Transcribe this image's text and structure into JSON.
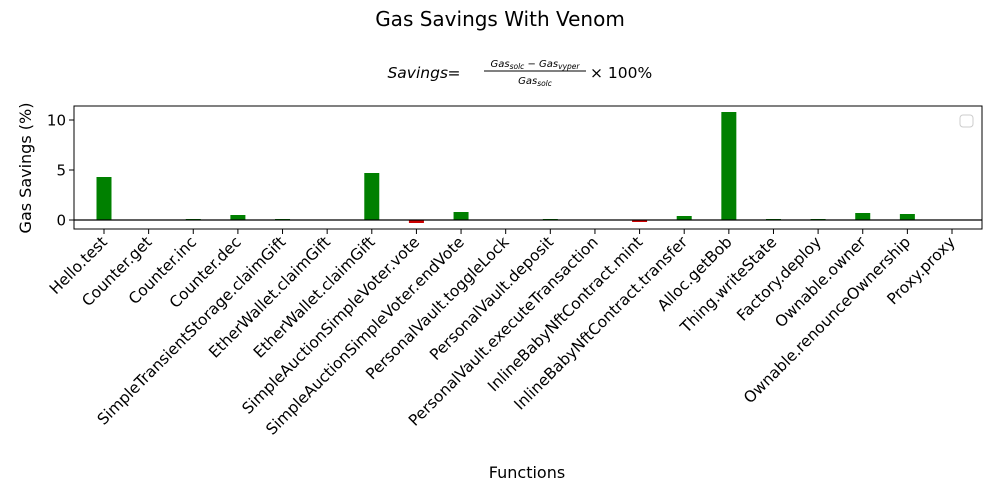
{
  "chart_data": {
    "type": "bar",
    "title": "Gas Savings With Venom",
    "formula": {
      "lhs": "Savings",
      "equals": "=",
      "numerator": "Gas",
      "numerator_sub_1": "solc",
      "minus": " − Gas",
      "numerator_sub_2": "vyper",
      "denominator": "Gas",
      "denominator_sub": "solc",
      "suffix": "× 100%"
    },
    "xlabel": "Functions",
    "ylabel": "Gas Savings (%)",
    "ylim": [
      -0.9,
      11.4
    ],
    "yticks": [
      0,
      5,
      10
    ],
    "grid": false,
    "legend": "top-right",
    "positive_color": "#008000",
    "negative_color": "#cc0000",
    "categories": [
      "Hello.test",
      "Counter.get",
      "Counter.inc",
      "Counter.dec",
      "SimpleTransientStorage.claimGift",
      "EtherWallet.claimGift",
      "EtherWallet.claimGift",
      "SimpleAuctionSimpleVoter.vote",
      "SimpleAuctionSimpleVoter.endVote",
      "PersonalVault.toggleLock",
      "PersonalVault.deposit",
      "PersonalVault.executeTransaction",
      "InlineBabyNftContract.mint",
      "InlineBabyNftContract.transfer",
      "Alloc.getBob",
      "Thing.writeState",
      "Factory.deploy",
      "Ownable.owner",
      "Ownable.renounceOwnership",
      "Proxy.proxy"
    ],
    "values": [
      4.3,
      0.0,
      0.1,
      0.5,
      0.1,
      0.0,
      4.7,
      -0.3,
      0.8,
      0.0,
      0.1,
      0.0,
      -0.2,
      0.4,
      10.8,
      0.1,
      0.1,
      0.7,
      0.6,
      0.0
    ]
  }
}
